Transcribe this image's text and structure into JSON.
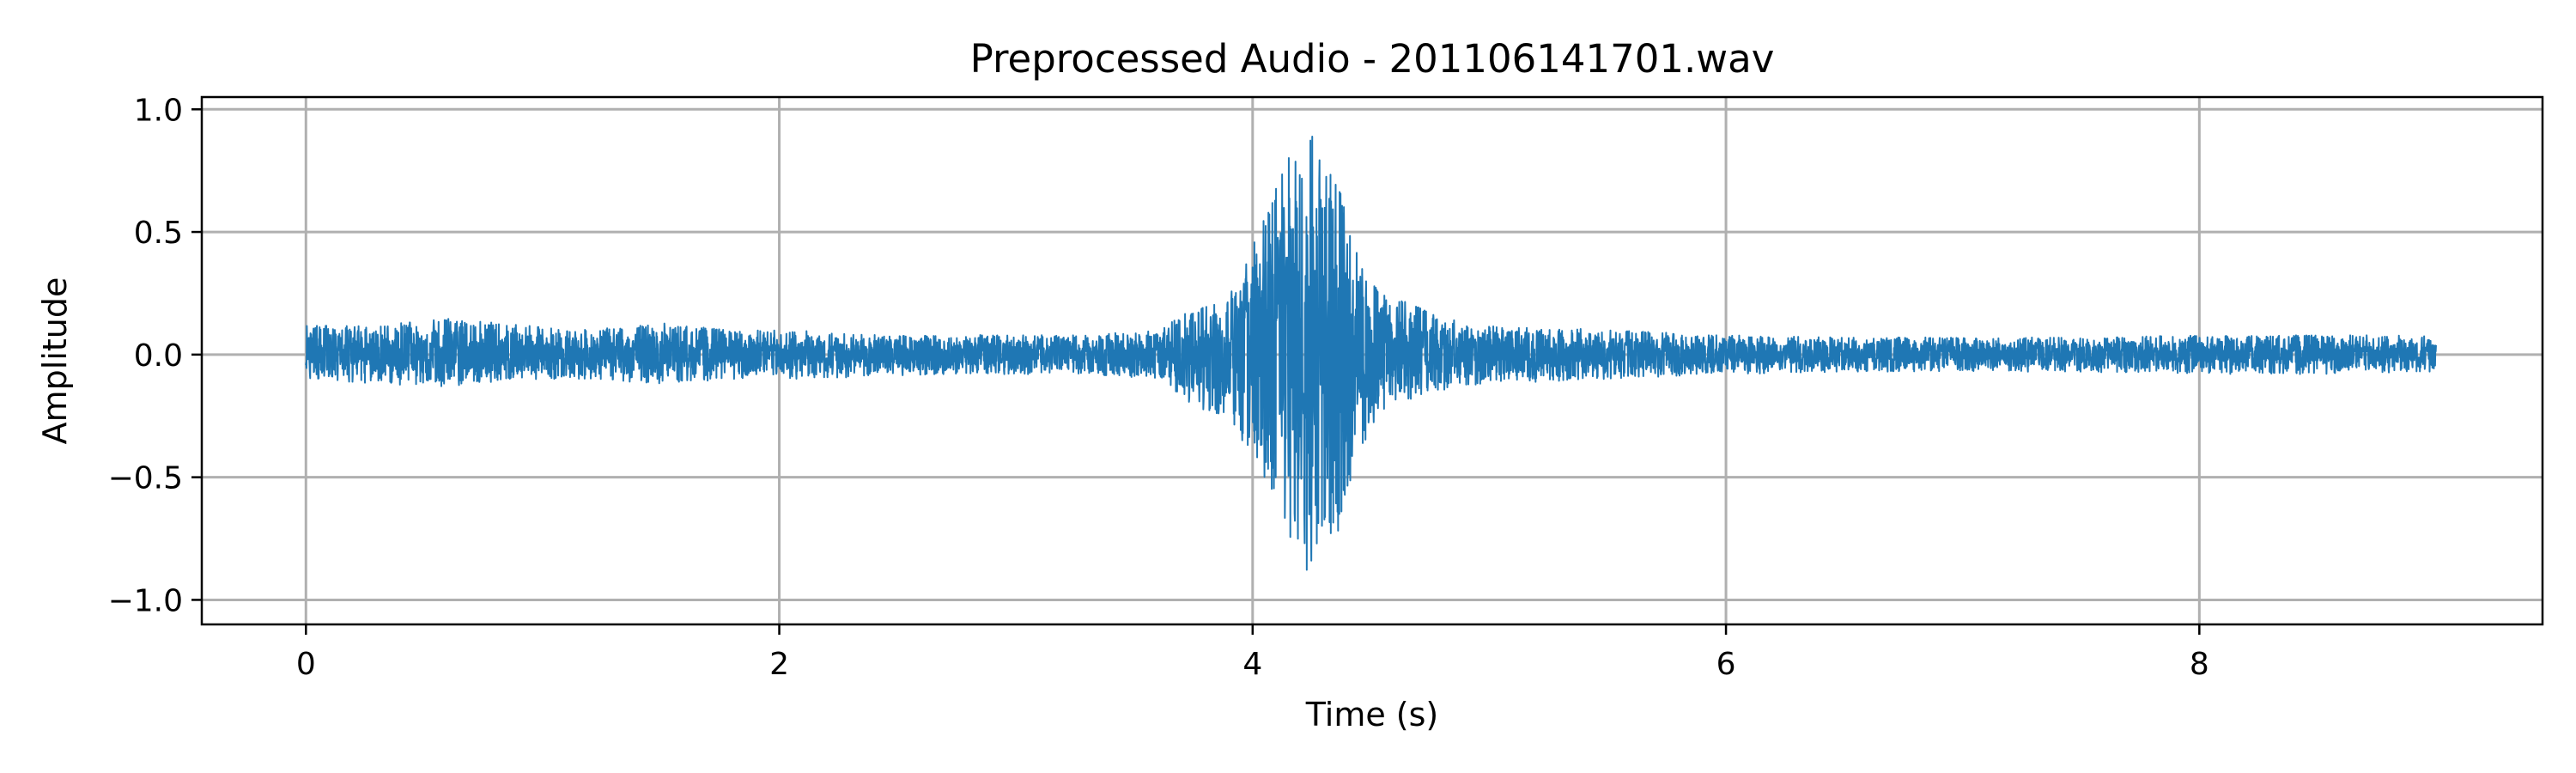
{
  "chart_data": {
    "type": "line",
    "title": "Preprocessed Audio - 201106141701.wav",
    "xlabel": "Time (s)",
    "ylabel": "Amplitude",
    "xlim": [
      -0.44,
      9.45
    ],
    "ylim": [
      -1.1,
      1.05
    ],
    "xticks": [
      0,
      2,
      4,
      6,
      8
    ],
    "xtick_labels": [
      "0",
      "2",
      "4",
      "6",
      "8"
    ],
    "yticks": [
      1.0,
      0.5,
      0.0,
      -0.5,
      -1.0
    ],
    "ytick_labels": [
      "1.0",
      "0.5",
      "0.0",
      "−0.5",
      "−1.0"
    ],
    "grid": true,
    "legend": "none",
    "series": [
      {
        "color": "#1f77b4",
        "duration_s": 9.0,
        "envelope": {
          "t": [
            0.0,
            0.3,
            0.6,
            0.9,
            1.2,
            1.5,
            1.8,
            2.1,
            2.4,
            2.7,
            3.0,
            3.3,
            3.6,
            3.8,
            3.9,
            4.0,
            4.1,
            4.15,
            4.2,
            4.25,
            4.3,
            4.35,
            4.4,
            4.5,
            4.6,
            4.8,
            5.0,
            5.5,
            6.0,
            6.5,
            7.0,
            7.5,
            8.0,
            8.5,
            9.0
          ],
          "max": [
            0.12,
            0.12,
            0.15,
            0.12,
            0.1,
            0.13,
            0.1,
            0.1,
            0.08,
            0.08,
            0.08,
            0.08,
            0.1,
            0.22,
            0.25,
            0.45,
            0.7,
            0.8,
            0.97,
            0.9,
            0.8,
            0.85,
            0.55,
            0.3,
            0.25,
            0.15,
            0.12,
            0.1,
            0.08,
            0.07,
            0.07,
            0.07,
            0.08,
            0.08,
            0.08
          ],
          "min": [
            -0.1,
            -0.12,
            -0.13,
            -0.1,
            -0.1,
            -0.12,
            -0.1,
            -0.1,
            -0.09,
            -0.08,
            -0.08,
            -0.08,
            -0.1,
            -0.25,
            -0.3,
            -0.45,
            -0.75,
            -0.85,
            -1.0,
            -0.88,
            -0.75,
            -0.85,
            -0.55,
            -0.3,
            -0.2,
            -0.15,
            -0.12,
            -0.1,
            -0.08,
            -0.07,
            -0.07,
            -0.07,
            -0.08,
            -0.08,
            -0.07
          ]
        }
      }
    ]
  }
}
